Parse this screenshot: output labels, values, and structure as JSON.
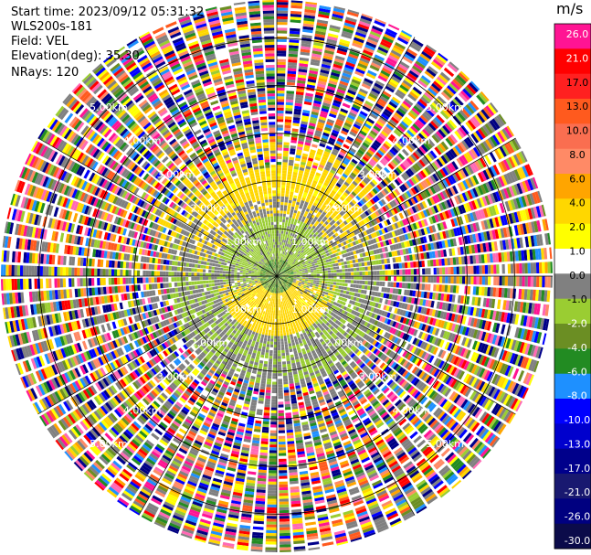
{
  "info": {
    "start_time": "Start time: 2023/09/12 05:31:32",
    "instrument": "WLS200s-181",
    "field": "Field: VEL",
    "elevation": "Elevation(deg): 35.30",
    "nrays": "NRays: 120"
  },
  "chart_data": {
    "type": "heatmap",
    "projection": "polar-ppi",
    "field": "VEL",
    "n_rays": 120,
    "range_rings_km": [
      1,
      2,
      3,
      4,
      5
    ],
    "ring_labels": [
      "1.00km",
      "2.00km",
      "3.00km",
      "4.00km",
      "5.00km"
    ],
    "max_range_km": 5.8,
    "colorbar": {
      "unit": "m/s",
      "tick_labels": [
        "26.0",
        "21.0",
        "17.0",
        "13.0",
        "10.0",
        "8.0",
        "6.0",
        "4.0",
        "2.0",
        "1.0",
        "0.0",
        "-1.0",
        "-2.0",
        "-4.0",
        "-6.0",
        "-8.0",
        "-10.0",
        "-13.0",
        "-17.0",
        "-21.0",
        "-26.0",
        "-30.0"
      ],
      "colors": [
        "#ff1493",
        "#ff0000",
        "#ff2020",
        "#ff5a1e",
        "#fa6e50",
        "#ff8a66",
        "#ffa500",
        "#ffd700",
        "#ffff00",
        "#ffffff",
        "#808080",
        "#9acd32",
        "#6b8e23",
        "#228b22",
        "#1e90ff",
        "#0000ff",
        "#0000cd",
        "#00008b",
        "#191970",
        "#000080",
        "#0b0b4a"
      ]
    },
    "structure": [
      {
        "range_km": [
          0.0,
          0.4
        ],
        "description": "near field mixed green"
      },
      {
        "range_km": [
          0.4,
          1.2
        ],
        "pattern": "toward-north negative (green/gray), toward-south positive (yellow)"
      },
      {
        "range_km": [
          1.2,
          2.2
        ],
        "pattern": "gray/green ring with yellow north sector"
      },
      {
        "range_km": [
          2.2,
          5.8
        ],
        "pattern": "noise, random multicolor"
      }
    ]
  }
}
